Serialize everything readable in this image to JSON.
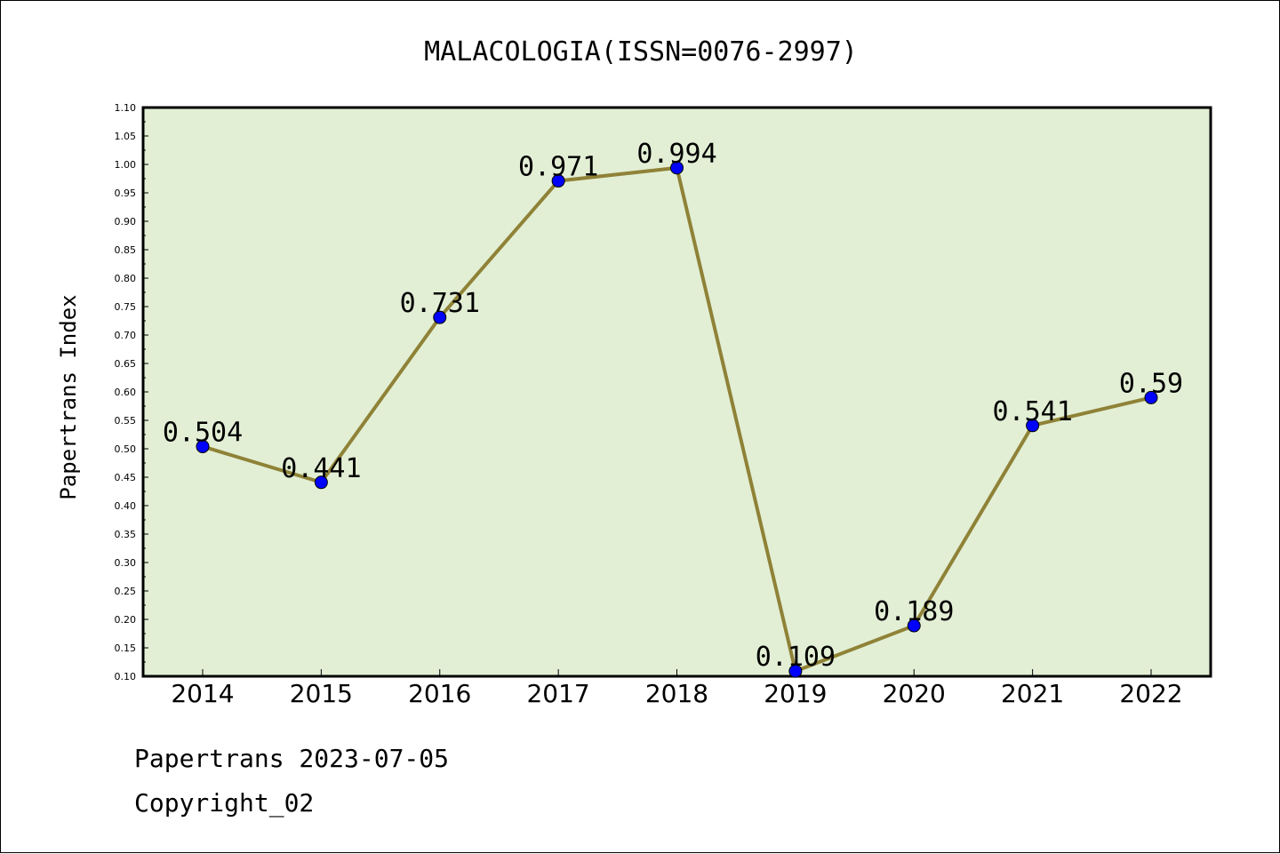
{
  "chart_data": {
    "type": "line",
    "title": "MALACOLOGIA(ISSN=0076-2997)",
    "ylabel": "Papertrans Index",
    "xlabel": "",
    "categories": [
      "2014",
      "2015",
      "2016",
      "2017",
      "2018",
      "2019",
      "2020",
      "2021",
      "2022"
    ],
    "values": [
      0.504,
      0.441,
      0.731,
      0.971,
      0.994,
      0.109,
      0.189,
      0.541,
      0.59
    ],
    "data_labels": [
      "0.504",
      "0.441",
      "0.731",
      "0.971",
      "0.994",
      "0.109",
      "0.189",
      "0.541",
      "0.59"
    ],
    "ylim": [
      0.1,
      1.1
    ],
    "ytick_step": 0.05,
    "grid": false,
    "legend": "none",
    "colors": {
      "plot_background": "#e2efd5",
      "line": "#8f8237",
      "marker": "#0000ff"
    }
  },
  "footer": {
    "line1": "Papertrans 2023-07-05",
    "line2": "Copyright_02"
  }
}
